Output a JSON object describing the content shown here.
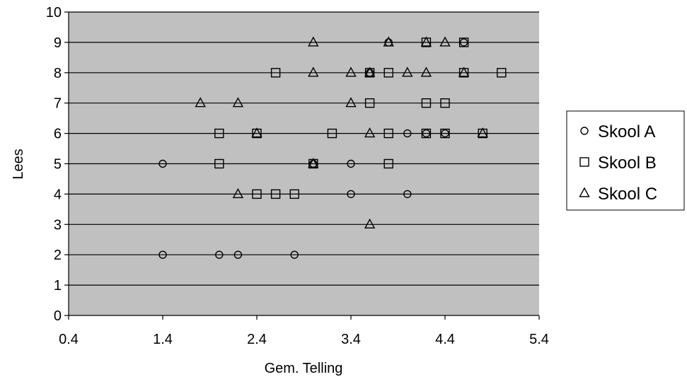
{
  "chart_data": {
    "type": "scatter",
    "title": "",
    "xlabel": "Gem. Telling",
    "ylabel": "Lees",
    "xlim": [
      0.4,
      5.4
    ],
    "ylim": [
      0,
      10
    ],
    "xticks": [
      0.4,
      1.4,
      2.4,
      3.4,
      4.4,
      5.4
    ],
    "xtick_labels": [
      "0.4",
      "1.4",
      "2.4",
      "3.4",
      "4.4",
      "5.4"
    ],
    "yticks": [
      0,
      1,
      2,
      3,
      4,
      5,
      6,
      7,
      8,
      9,
      10
    ],
    "ytick_labels": [
      "0",
      "1",
      "2",
      "3",
      "4",
      "5",
      "6",
      "7",
      "8",
      "9",
      "10"
    ],
    "grid": "horizontal",
    "plot_background": "#c0c0c0",
    "legend_position": "right",
    "series": [
      {
        "name": "Skool A",
        "marker": "circle",
        "points": [
          [
            1.4,
            5
          ],
          [
            1.4,
            2
          ],
          [
            2.0,
            2
          ],
          [
            2.2,
            2
          ],
          [
            2.8,
            2
          ],
          [
            3.0,
            5
          ],
          [
            3.4,
            5
          ],
          [
            3.4,
            4
          ],
          [
            4.0,
            4
          ],
          [
            4.0,
            6
          ],
          [
            3.6,
            8
          ],
          [
            3.8,
            9
          ],
          [
            4.2,
            6
          ],
          [
            4.4,
            6
          ],
          [
            4.6,
            9
          ]
        ]
      },
      {
        "name": "Skool B",
        "marker": "square",
        "points": [
          [
            2.0,
            6
          ],
          [
            2.0,
            5
          ],
          [
            2.4,
            6
          ],
          [
            2.4,
            4
          ],
          [
            2.6,
            4
          ],
          [
            2.8,
            4
          ],
          [
            2.6,
            8
          ],
          [
            3.0,
            5
          ],
          [
            3.2,
            6
          ],
          [
            3.6,
            7
          ],
          [
            3.6,
            8
          ],
          [
            3.8,
            8
          ],
          [
            3.8,
            6
          ],
          [
            3.8,
            5
          ],
          [
            4.2,
            9
          ],
          [
            4.2,
            7
          ],
          [
            4.2,
            6
          ],
          [
            4.4,
            7
          ],
          [
            4.4,
            6
          ],
          [
            4.6,
            9
          ],
          [
            4.6,
            8
          ],
          [
            4.8,
            6
          ],
          [
            5.0,
            8
          ]
        ]
      },
      {
        "name": "Skool C",
        "marker": "triangle",
        "points": [
          [
            1.8,
            7
          ],
          [
            2.2,
            7
          ],
          [
            2.2,
            4
          ],
          [
            2.4,
            6
          ],
          [
            3.0,
            9
          ],
          [
            3.0,
            8
          ],
          [
            3.0,
            5
          ],
          [
            3.4,
            8
          ],
          [
            3.4,
            7
          ],
          [
            3.6,
            8
          ],
          [
            3.6,
            6
          ],
          [
            3.6,
            3
          ],
          [
            3.8,
            9
          ],
          [
            4.0,
            8
          ],
          [
            4.2,
            9
          ],
          [
            4.2,
            8
          ],
          [
            4.4,
            9
          ],
          [
            4.6,
            8
          ],
          [
            4.8,
            6
          ]
        ]
      }
    ]
  }
}
